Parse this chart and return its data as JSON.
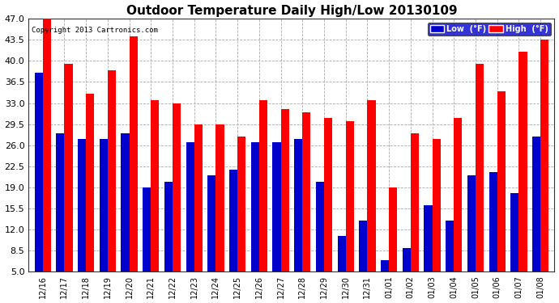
{
  "title": "Outdoor Temperature Daily High/Low 20130109",
  "copyright": "Copyright 2013 Cartronics.com",
  "categories": [
    "12/16",
    "12/17",
    "12/18",
    "12/19",
    "12/20",
    "12/21",
    "12/22",
    "12/23",
    "12/24",
    "12/25",
    "12/26",
    "12/27",
    "12/28",
    "12/29",
    "12/30",
    "12/31",
    "01/01",
    "01/02",
    "01/03",
    "01/04",
    "01/05",
    "01/06",
    "01/07",
    "01/08"
  ],
  "high": [
    47.0,
    39.5,
    34.5,
    38.5,
    44.0,
    33.5,
    33.0,
    29.5,
    29.5,
    27.5,
    33.5,
    32.0,
    31.5,
    30.5,
    30.0,
    33.5,
    19.0,
    28.0,
    27.0,
    30.5,
    39.5,
    35.0,
    41.5,
    43.5
  ],
  "low": [
    38.0,
    28.0,
    27.0,
    27.0,
    28.0,
    19.0,
    20.0,
    26.5,
    21.0,
    22.0,
    26.5,
    26.5,
    27.0,
    20.0,
    11.0,
    13.5,
    7.0,
    9.0,
    16.0,
    13.5,
    21.0,
    21.5,
    18.0,
    27.5
  ],
  "high_color": "#ff0000",
  "low_color": "#0000cc",
  "bg_color": "#ffffff",
  "grid_color": "#aaaaaa",
  "ylim_min": 5.0,
  "ylim_max": 47.0,
  "yticks": [
    5.0,
    8.5,
    12.0,
    15.5,
    19.0,
    22.5,
    26.0,
    29.5,
    33.0,
    36.5,
    40.0,
    43.5,
    47.0
  ],
  "legend_low_label": "Low  (°F)",
  "legend_high_label": "High  (°F)",
  "bar_width": 0.38,
  "title_fontsize": 11,
  "tick_fontsize": 7,
  "ytick_fontsize": 8,
  "figwidth": 6.9,
  "figheight": 3.75,
  "dpi": 100
}
